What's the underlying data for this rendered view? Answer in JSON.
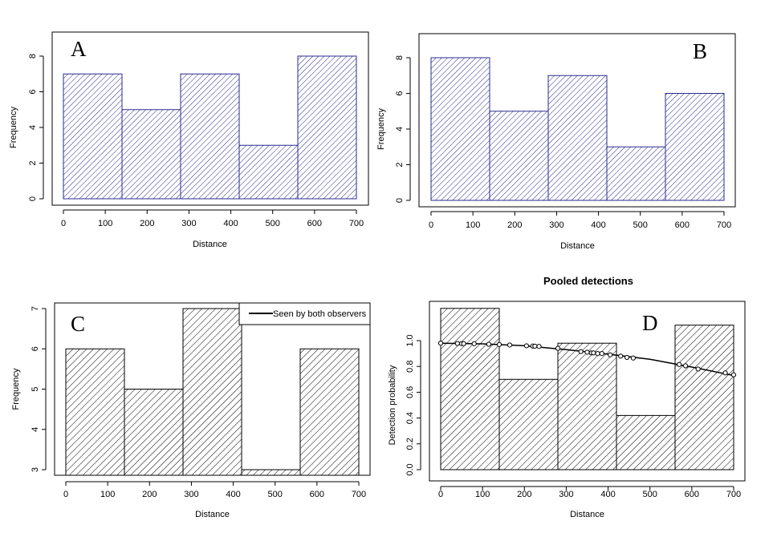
{
  "chart_data": [
    {
      "type": "bar",
      "panel": "A",
      "panel_label": "A",
      "title": "",
      "xlabel": "Distance",
      "ylabel": "Frequency",
      "bins": [
        [
          0,
          140
        ],
        [
          140,
          280
        ],
        [
          280,
          420
        ],
        [
          420,
          560
        ],
        [
          560,
          700
        ]
      ],
      "values": [
        7,
        5,
        7,
        3,
        8
      ],
      "xlim": [
        0,
        700
      ],
      "ylim": [
        0,
        8
      ],
      "xticks": [
        0,
        100,
        200,
        300,
        400,
        500,
        600,
        700
      ],
      "yticks": [
        0,
        2,
        4,
        6,
        8
      ],
      "fill": "hatched",
      "color": "#2b2b8f",
      "grid": false
    },
    {
      "type": "bar",
      "panel": "B",
      "panel_label": "B",
      "title": "",
      "xlabel": "Distance",
      "ylabel": "Frequency",
      "bins": [
        [
          0,
          140
        ],
        [
          140,
          280
        ],
        [
          280,
          420
        ],
        [
          420,
          560
        ],
        [
          560,
          700
        ]
      ],
      "values": [
        8,
        5,
        7,
        3,
        6
      ],
      "xlim": [
        0,
        700
      ],
      "ylim": [
        0,
        8
      ],
      "xticks": [
        0,
        100,
        200,
        300,
        400,
        500,
        600,
        700
      ],
      "yticks": [
        0,
        2,
        4,
        6,
        8
      ],
      "fill": "hatched",
      "color": "#2b2b8f",
      "grid": false
    },
    {
      "type": "bar",
      "panel": "C",
      "panel_label": "C",
      "title": "",
      "xlabel": "Distance",
      "ylabel": "Frequency",
      "bins": [
        [
          0,
          140
        ],
        [
          140,
          280
        ],
        [
          280,
          420
        ],
        [
          420,
          560
        ],
        [
          560,
          700
        ]
      ],
      "values": [
        6,
        5,
        7,
        3,
        6
      ],
      "xlim": [
        0,
        700
      ],
      "ylim": [
        3,
        7
      ],
      "xticks": [
        0,
        100,
        200,
        300,
        400,
        500,
        600,
        700
      ],
      "yticks": [
        3,
        4,
        5,
        6,
        7
      ],
      "fill": "hatched",
      "color": "#000000",
      "legend": {
        "position": "top-right",
        "entries": [
          "Seen by both observers"
        ]
      },
      "grid": false
    },
    {
      "type": "bar",
      "panel": "D",
      "panel_label": "D",
      "title": "Pooled detections",
      "xlabel": "Distance",
      "ylabel": "Detection probability",
      "bins": [
        [
          0,
          140
        ],
        [
          140,
          280
        ],
        [
          280,
          420
        ],
        [
          420,
          560
        ],
        [
          560,
          700
        ]
      ],
      "values": [
        1.25,
        0.7,
        0.98,
        0.42,
        1.12
      ],
      "xlim": [
        0,
        700
      ],
      "ylim": [
        0,
        1.0
      ],
      "xticks": [
        0,
        100,
        200,
        300,
        400,
        500,
        600,
        700
      ],
      "yticks": [
        0.0,
        0.2,
        0.4,
        0.6,
        0.8,
        1.0
      ],
      "fill": "hatched",
      "color": "#000000",
      "curve": {
        "x": [
          0,
          100,
          200,
          300,
          400,
          500,
          600,
          700
        ],
        "y": [
          0.98,
          0.975,
          0.96,
          0.93,
          0.895,
          0.855,
          0.795,
          0.73
        ]
      },
      "points": {
        "x": [
          0,
          40,
          50,
          55,
          80,
          115,
          140,
          165,
          205,
          220,
          225,
          235,
          280,
          335,
          350,
          360,
          365,
          375,
          385,
          405,
          430,
          445,
          460,
          570,
          585,
          615,
          680,
          700
        ],
        "y": [
          0.98,
          0.978,
          0.977,
          0.977,
          0.976,
          0.972,
          0.97,
          0.966,
          0.96,
          0.958,
          0.957,
          0.955,
          0.94,
          0.915,
          0.91,
          0.905,
          0.905,
          0.9,
          0.9,
          0.89,
          0.88,
          0.87,
          0.865,
          0.815,
          0.805,
          0.78,
          0.75,
          0.735
        ]
      },
      "grid": false
    }
  ]
}
